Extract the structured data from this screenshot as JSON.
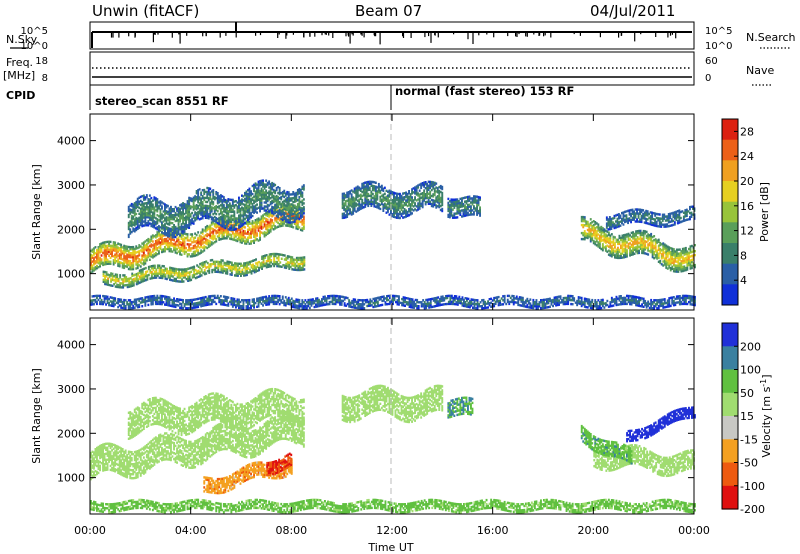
{
  "header": {
    "radar": "Unwin (fitACF)",
    "beam": "Beam 07",
    "date": "04/Jul/2011"
  },
  "side_labels": {
    "nsky": "N.Sky",
    "freq_top": "Freq.",
    "freq_unit": "[MHz]",
    "cpid": "CPID",
    "nsearch": "N.Search",
    "nave": "Nave"
  },
  "strip_ticks": {
    "noise_left_top": "10^5",
    "noise_left_bot": "10^0",
    "noise_right_top": "10^5",
    "noise_right_bot": "10^0",
    "freq_left_top": "18",
    "freq_left_bot": "8",
    "nave_right_top": "60",
    "nave_right_bot": "0"
  },
  "cpid_modes": [
    {
      "label": "stereo_scan 8551 RF",
      "start_hour": 0
    },
    {
      "label": "normal (fast stereo) 153 RF",
      "start_hour": 12
    }
  ],
  "colors": {
    "power": [
      "#1030d8",
      "#2a5fa6",
      "#3a7f6a",
      "#5a9f5a",
      "#98c43a",
      "#e6d020",
      "#f0a020",
      "#ec6018",
      "#dc2010"
    ],
    "velocity": [
      "#e01010",
      "#ee5a10",
      "#f4a020",
      "#c8c8c4",
      "#a0dc70",
      "#60c040",
      "#3a80a0",
      "#2030d8"
    ]
  },
  "chart_data": [
    {
      "type": "heatmap",
      "title": "",
      "xlabel": "Time UT",
      "ylabel": "Slant Range [km]",
      "xlim": [
        0,
        24
      ],
      "ylim": [
        180,
        4600
      ],
      "x_ticks": [
        "00:00",
        "04:00",
        "08:00",
        "12:00",
        "16:00",
        "20:00",
        "00:00"
      ],
      "y_ticks": [
        "1000",
        "2000",
        "3000",
        "4000"
      ],
      "colorbar": {
        "label": "Power [dB]",
        "ticks": [
          "4",
          "8",
          "12",
          "16",
          "20",
          "24",
          "28"
        ],
        "range": [
          0,
          30
        ]
      },
      "echo_regions": [
        {
          "name": "near-range band",
          "time_start": 0.0,
          "time_end": 8.5,
          "range_center_start": 1250,
          "range_center_end": 2300,
          "thickness_km": 500,
          "power_db": 22
        },
        {
          "name": "second band",
          "time_start": 0.5,
          "time_end": 8.5,
          "range_center_start": 850,
          "range_center_end": 1300,
          "thickness_km": 300,
          "power_db": 16
        },
        {
          "name": "upper cluster",
          "time_start": 1.5,
          "time_end": 8.5,
          "range_center_start": 2200,
          "range_center_end": 2700,
          "thickness_km": 700,
          "power_db": 9
        },
        {
          "name": "midnight cluster",
          "time_start": 10.0,
          "time_end": 14.0,
          "range_center_start": 2650,
          "range_center_end": 2650,
          "thickness_km": 550,
          "power_db": 9
        },
        {
          "name": "patch near 14 UT",
          "time_start": 14.2,
          "time_end": 15.5,
          "range_center_start": 2600,
          "range_center_end": 2400,
          "thickness_km": 450,
          "power_db": 8
        },
        {
          "name": "dawn band",
          "time_start": 19.5,
          "time_end": 24.0,
          "range_center_start": 1900,
          "range_center_end": 1300,
          "thickness_km": 500,
          "power_db": 18
        },
        {
          "name": "dawn upper",
          "time_start": 20.5,
          "time_end": 24.0,
          "range_center_start": 2200,
          "range_center_end": 2300,
          "thickness_km": 300,
          "power_db": 7
        },
        {
          "name": "near-range ground scatter",
          "time_start": 0.0,
          "time_end": 24.0,
          "range_center_start": 350,
          "range_center_end": 350,
          "thickness_km": 200,
          "power_db": 6
        }
      ]
    },
    {
      "type": "heatmap",
      "title": "",
      "xlabel": "Time UT",
      "ylabel": "Slant Range [km]",
      "xlim": [
        0,
        24
      ],
      "ylim": [
        180,
        4600
      ],
      "x_ticks": [
        "00:00",
        "04:00",
        "08:00",
        "12:00",
        "16:00",
        "20:00",
        "00:00"
      ],
      "y_ticks": [
        "1000",
        "2000",
        "3000",
        "4000"
      ],
      "colorbar": {
        "label": "Velocity [m s^-1]",
        "ticks": [
          "200",
          "100",
          "50",
          "15",
          "-15",
          "-50",
          "-100",
          "-200"
        ],
        "range": [
          -250,
          250
        ]
      },
      "echo_regions": [
        {
          "name": "ground scatter band",
          "time_start": 0.0,
          "time_end": 8.5,
          "range_center_start": 1250,
          "range_center_end": 2100,
          "thickness_km": 600,
          "velocity": 0
        },
        {
          "name": "upper ground scatter",
          "time_start": 1.5,
          "time_end": 8.5,
          "range_center_start": 2300,
          "range_center_end": 2600,
          "thickness_km": 600,
          "velocity": 0
        },
        {
          "name": "midnight ground scatter",
          "time_start": 10.0,
          "time_end": 14.0,
          "range_center_start": 2650,
          "range_center_end": 2650,
          "thickness_km": 550,
          "velocity": 0
        },
        {
          "name": "negative velocity streak",
          "time_start": 4.5,
          "time_end": 8.0,
          "range_center_start": 800,
          "range_center_end": 1300,
          "thickness_km": 350,
          "velocity": -80
        },
        {
          "name": "strong negative edge",
          "time_start": 7.0,
          "time_end": 8.0,
          "range_center_start": 1250,
          "range_center_end": 1400,
          "thickness_km": 300,
          "velocity": -200
        },
        {
          "name": "positive patch 14 UT",
          "time_start": 14.2,
          "time_end": 15.2,
          "range_center_start": 2600,
          "range_center_end": 2500,
          "thickness_km": 400,
          "velocity": 50
        },
        {
          "name": "dawn ground scatter",
          "time_start": 20.0,
          "time_end": 24.0,
          "range_center_start": 1500,
          "range_center_end": 1300,
          "thickness_km": 450,
          "velocity": 0
        },
        {
          "name": "dawn positive",
          "time_start": 19.5,
          "time_end": 21.5,
          "range_center_start": 2000,
          "range_center_end": 1400,
          "thickness_km": 350,
          "velocity": 40
        },
        {
          "name": "dawn high positive",
          "time_start": 21.3,
          "time_end": 24.0,
          "range_center_start": 1900,
          "range_center_end": 2500,
          "thickness_km": 250,
          "velocity": 180
        },
        {
          "name": "near-range",
          "time_start": 0.0,
          "time_end": 24.0,
          "range_center_start": 350,
          "range_center_end": 350,
          "thickness_km": 200,
          "velocity": 20
        }
      ]
    }
  ]
}
